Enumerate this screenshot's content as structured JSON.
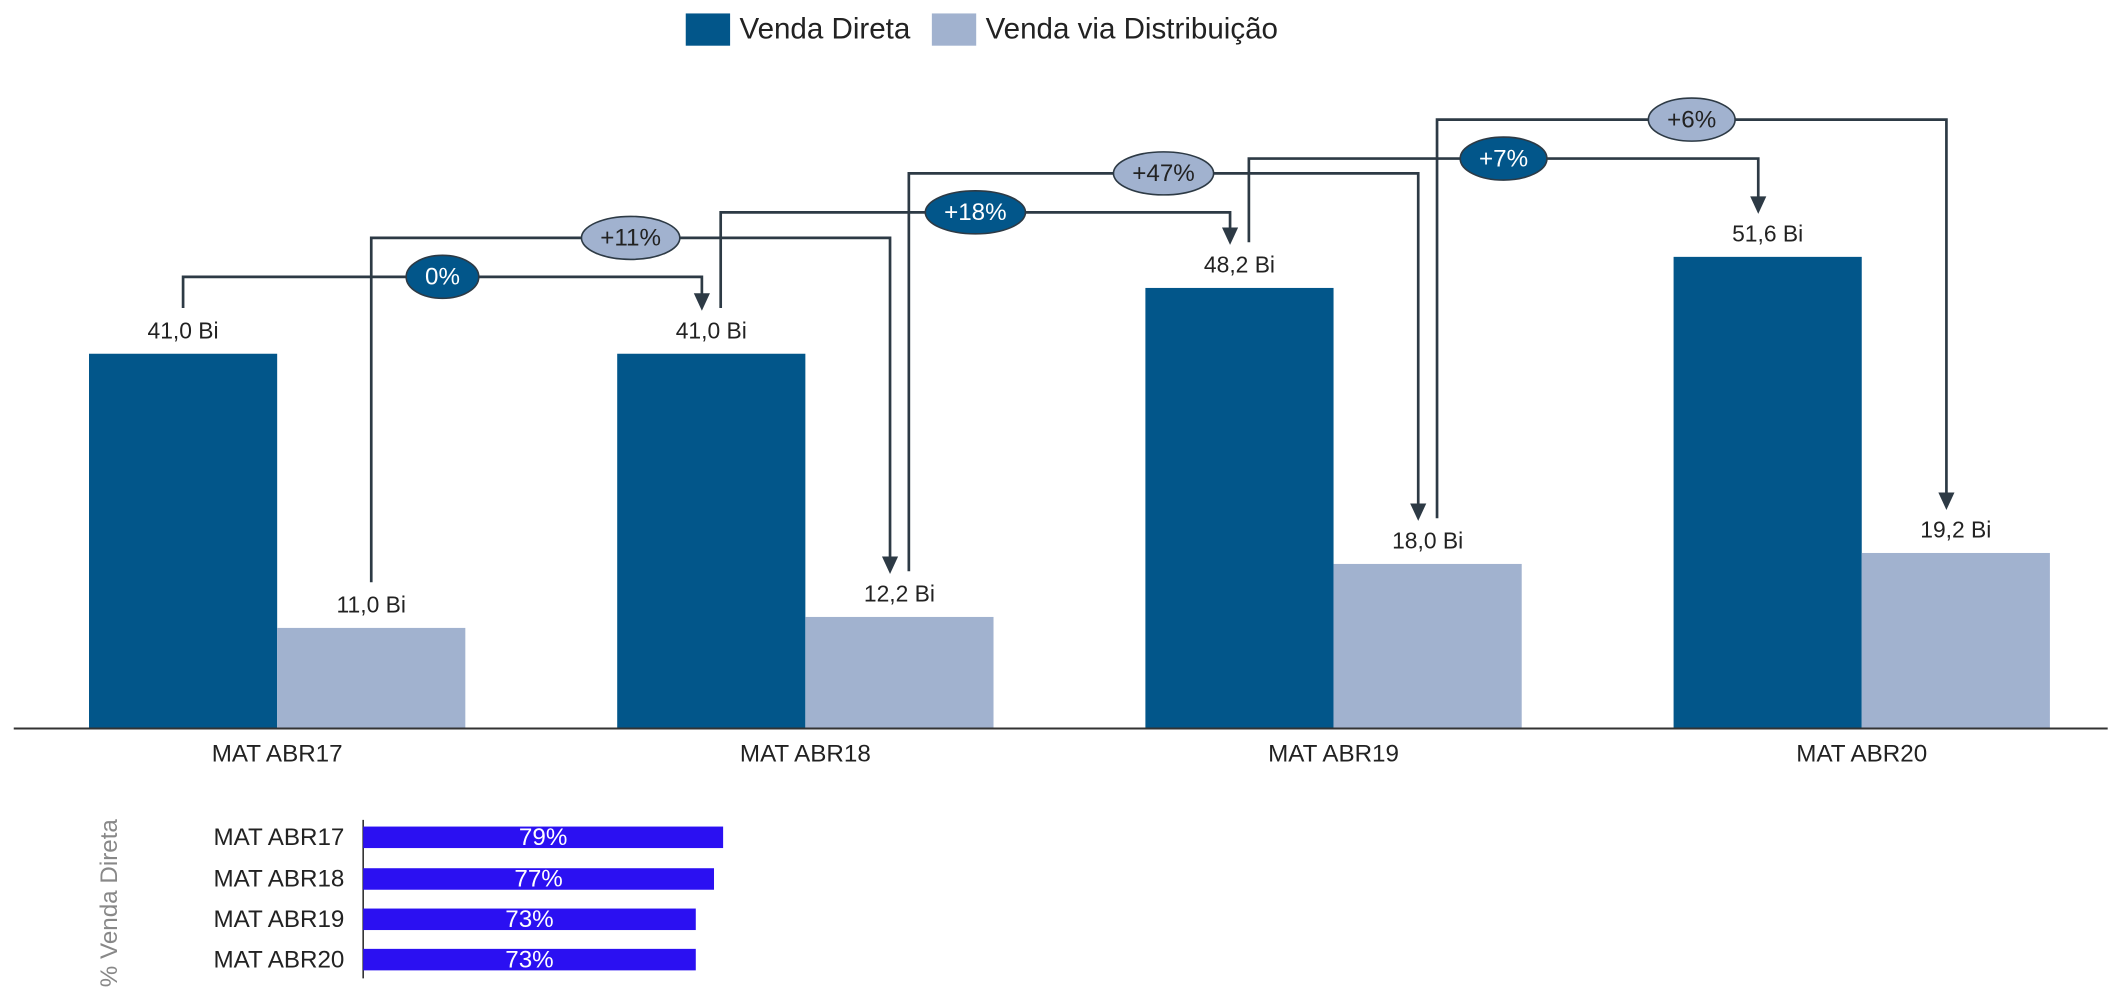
{
  "chart_data": [
    {
      "type": "bar",
      "categories": [
        "MAT ABR17",
        "MAT ABR18",
        "MAT ABR19",
        "MAT ABR20"
      ],
      "series": [
        {
          "name": "Venda Direta",
          "color": "#02568a",
          "values": [
            41.0,
            41.0,
            48.2,
            51.6
          ],
          "value_labels": [
            "41,0 Bi",
            "41,0 Bi",
            "48,2 Bi",
            "51,6 Bi"
          ],
          "growth_labels": [
            "0%",
            "+18%",
            "+7%"
          ]
        },
        {
          "name": "Venda via Distribuição",
          "color": "#a1b2cf",
          "values": [
            11.0,
            12.2,
            18.0,
            19.2
          ],
          "value_labels": [
            "11,0 Bi",
            "12,2 Bi",
            "18,0 Bi",
            "19,2 Bi"
          ],
          "growth_labels": [
            "+11%",
            "+47%",
            "+6%"
          ]
        }
      ],
      "ylim": [
        0,
        80
      ],
      "legend": "top"
    },
    {
      "type": "hbar",
      "y_label": "% Venda Direta",
      "categories": [
        "MAT ABR17",
        "MAT ABR18",
        "MAT ABR19",
        "MAT ABR20"
      ],
      "values": [
        79,
        77,
        73,
        73
      ],
      "value_labels": [
        "79%",
        "77%",
        "73%",
        "73%"
      ],
      "color": "#2b10f2",
      "xlim": [
        0,
        100
      ]
    }
  ]
}
